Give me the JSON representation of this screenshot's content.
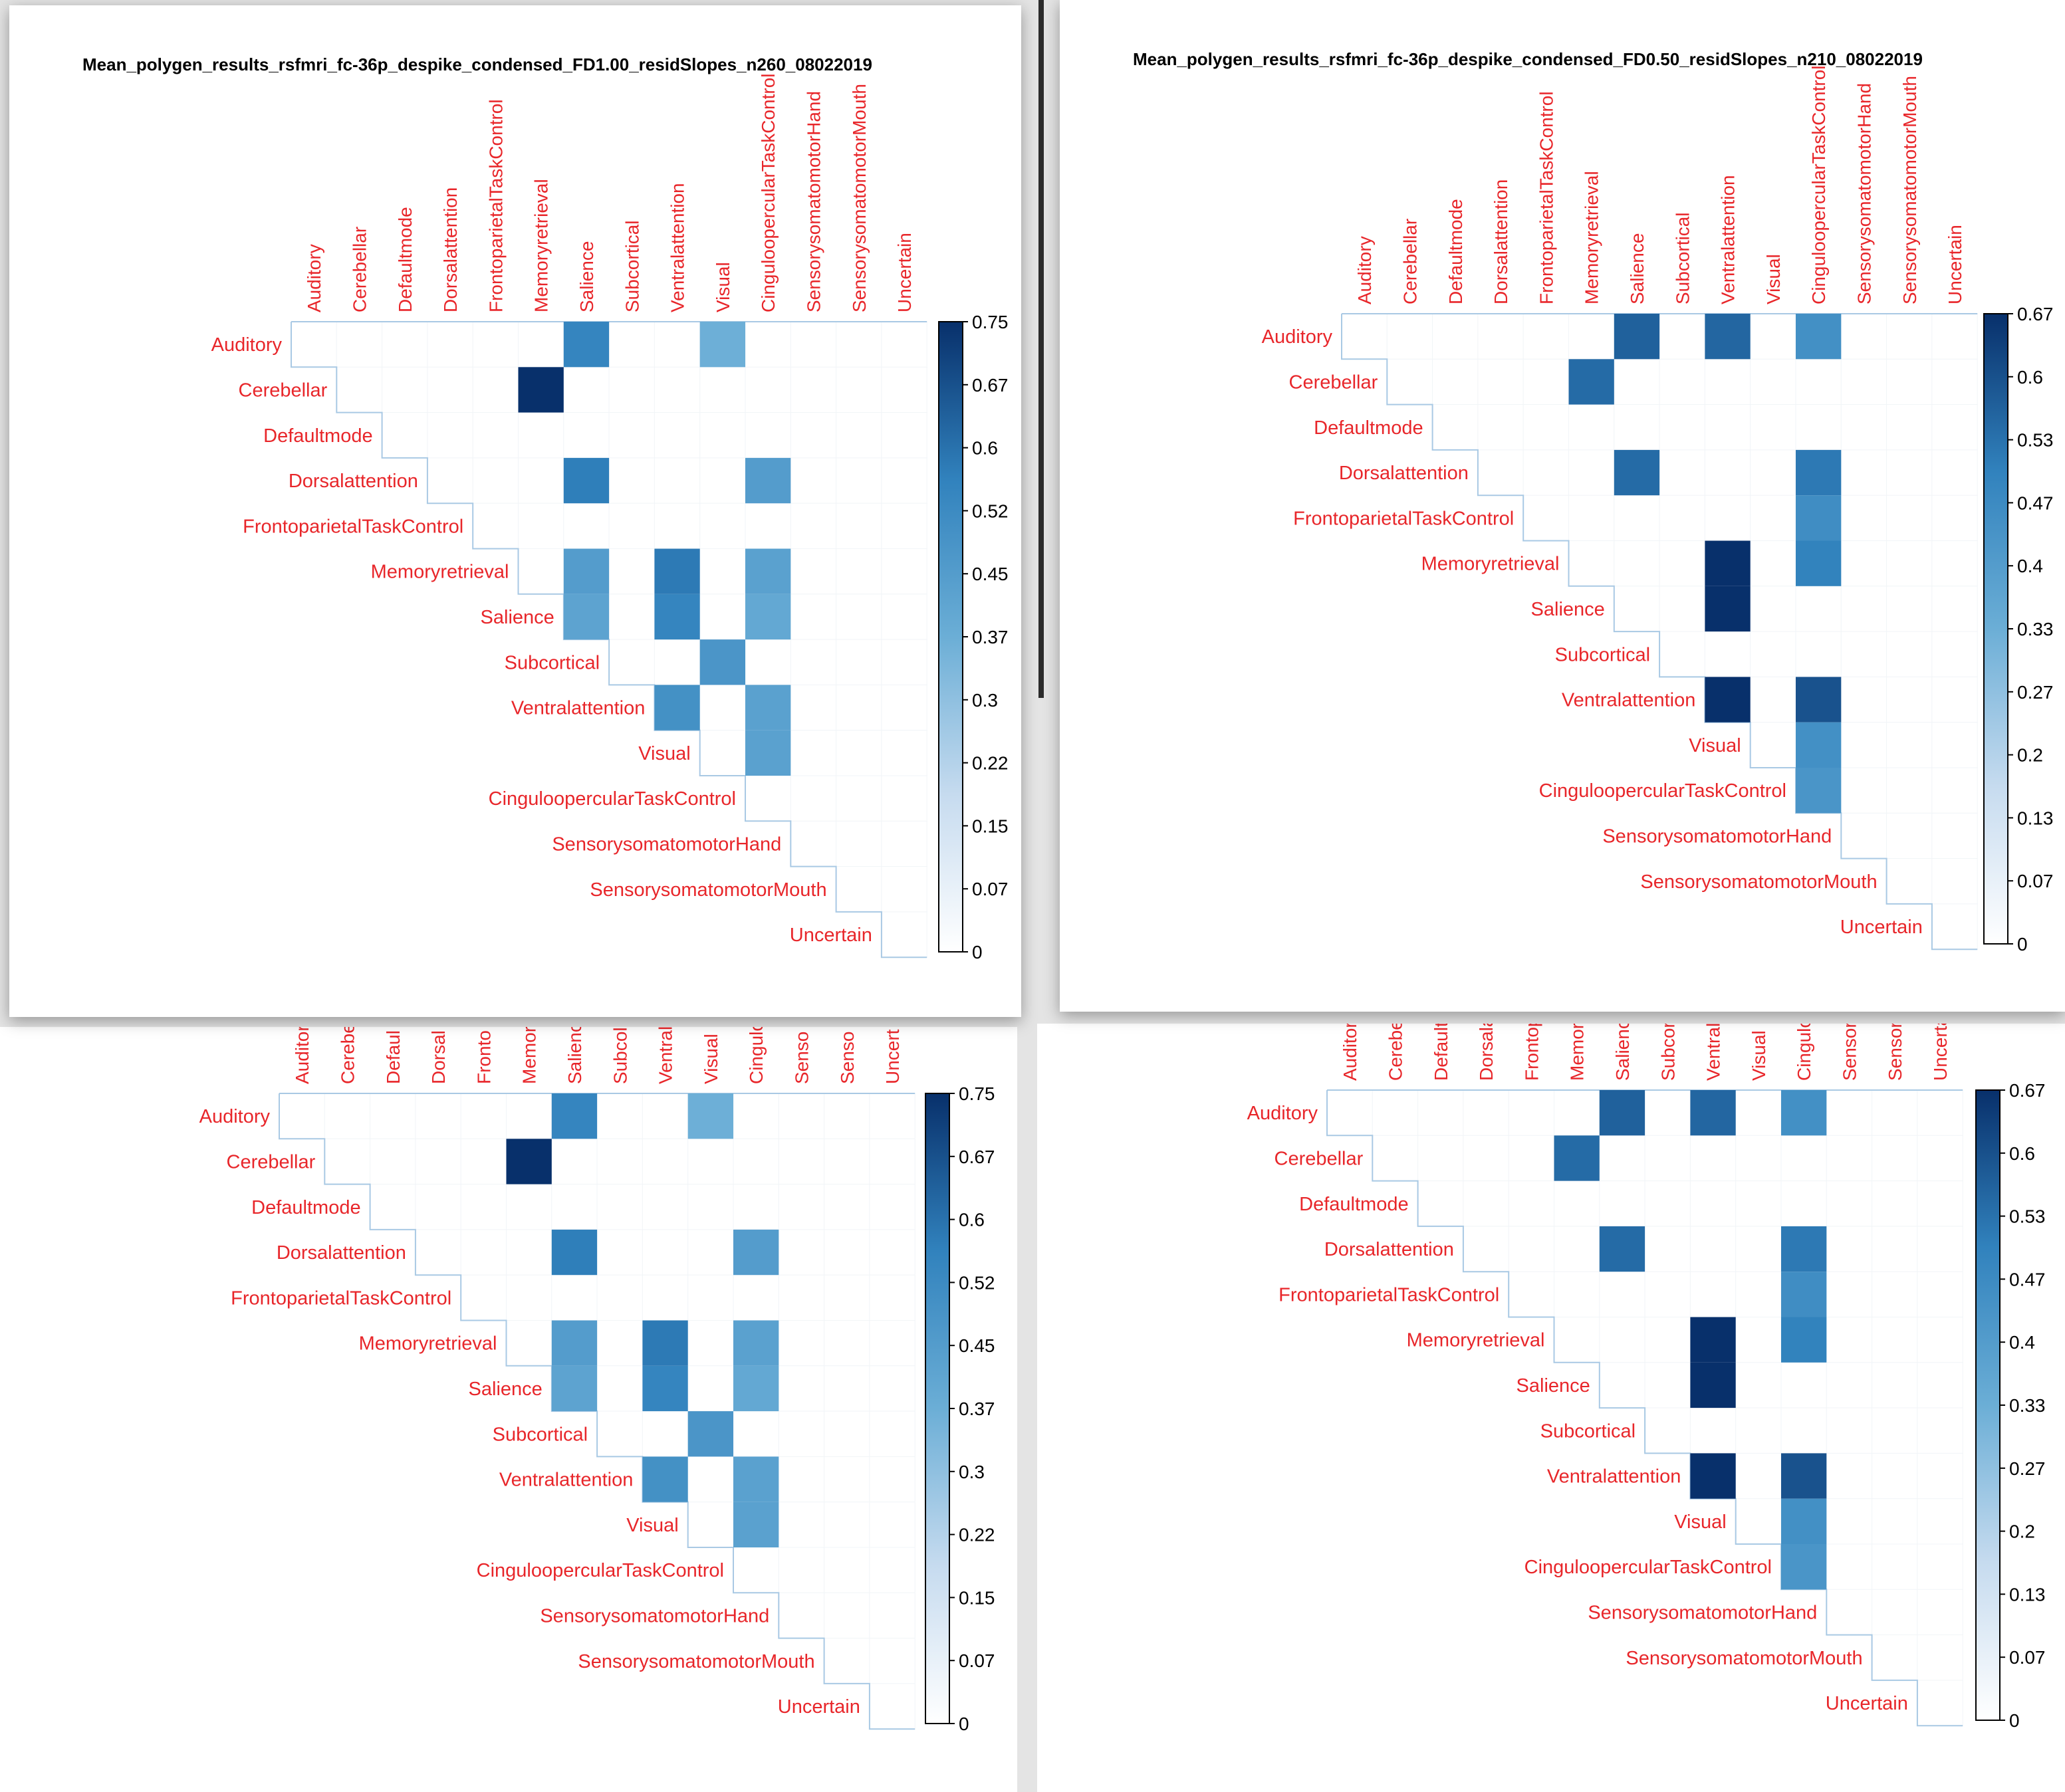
{
  "chart_data": [
    {
      "type": "heatmap",
      "title": "Mean_polygen_results_rsfmri_fc-36p_despike_condensed_FD1.00_residSlopes_n260_08022019",
      "columns": [
        "Auditory",
        "Cerebellar",
        "Defaultmode",
        "Dorsalattention",
        "FrontoparietalTaskControl",
        "Memoryretrieval",
        "Salience",
        "Subcortical",
        "Ventralattention",
        "Visual",
        "CinguloopercularTaskControl",
        "SensorysomatomotorHand",
        "SensorysomatomotorMouth",
        "Uncertain"
      ],
      "rows": [
        "Auditory",
        "Cerebellar",
        "Defaultmode",
        "Dorsalattention",
        "FrontoparietalTaskControl",
        "Memoryretrieval",
        "Salience",
        "Subcortical",
        "Ventralattention",
        "Visual",
        "CinguloopercularTaskControl",
        "SensorysomatomotorHand",
        "SensorysomatomotorMouth",
        "Uncertain"
      ],
      "cells": [
        {
          "row": "Auditory",
          "col": "Salience",
          "value": 0.55
        },
        {
          "row": "Auditory",
          "col": "Visual",
          "value": 0.37
        },
        {
          "row": "Cerebellar",
          "col": "Memoryretrieval",
          "value": 0.75
        },
        {
          "row": "Dorsalattention",
          "col": "Salience",
          "value": 0.57
        },
        {
          "row": "Dorsalattention",
          "col": "CinguloopercularTaskControl",
          "value": 0.45
        },
        {
          "row": "Memoryretrieval",
          "col": "Salience",
          "value": 0.45
        },
        {
          "row": "Memoryretrieval",
          "col": "Ventralattention",
          "value": 0.58
        },
        {
          "row": "Memoryretrieval",
          "col": "CinguloopercularTaskControl",
          "value": 0.43
        },
        {
          "row": "Salience",
          "col": "Salience",
          "value": 0.42
        },
        {
          "row": "Salience",
          "col": "Ventralattention",
          "value": 0.55
        },
        {
          "row": "Salience",
          "col": "CinguloopercularTaskControl",
          "value": 0.4
        },
        {
          "row": "Subcortical",
          "col": "Visual",
          "value": 0.48
        },
        {
          "row": "Ventralattention",
          "col": "Ventralattention",
          "value": 0.5
        },
        {
          "row": "Ventralattention",
          "col": "CinguloopercularTaskControl",
          "value": 0.43
        },
        {
          "row": "Visual",
          "col": "CinguloopercularTaskControl",
          "value": 0.43
        }
      ],
      "colorbar": {
        "ticks": [
          "0.75",
          "0.67",
          "0.6",
          "0.52",
          "0.45",
          "0.37",
          "0.3",
          "0.22",
          "0.15",
          "0.07",
          "0"
        ],
        "min": 0,
        "max": 0.75
      }
    },
    {
      "type": "heatmap",
      "title": "Mean_polygen_results_rsfmri_fc-36p_despike_condensed_FD0.50_residSlopes_n210_08022019",
      "columns": [
        "Auditory",
        "Cerebellar",
        "Defaultmode",
        "Dorsalattention",
        "FrontoparietalTaskControl",
        "Memoryretrieval",
        "Salience",
        "Subcortical",
        "Ventralattention",
        "Visual",
        "CinguloopercularTaskControl",
        "SensorysomatomotorHand",
        "SensorysomatomotorMouth",
        "Uncertain"
      ],
      "rows": [
        "Auditory",
        "Cerebellar",
        "Defaultmode",
        "Dorsalattention",
        "FrontoparietalTaskControl",
        "Memoryretrieval",
        "Salience",
        "Subcortical",
        "Ventralattention",
        "Visual",
        "CinguloopercularTaskControl",
        "SensorysomatomotorHand",
        "SensorysomatomotorMouth",
        "Uncertain"
      ],
      "cells": [
        {
          "row": "Auditory",
          "col": "Salience",
          "value": 0.57
        },
        {
          "row": "Auditory",
          "col": "Ventralattention",
          "value": 0.56
        },
        {
          "row": "Auditory",
          "col": "CinguloopercularTaskControl",
          "value": 0.45
        },
        {
          "row": "Cerebellar",
          "col": "Memoryretrieval",
          "value": 0.55
        },
        {
          "row": "Dorsalattention",
          "col": "Salience",
          "value": 0.55
        },
        {
          "row": "Dorsalattention",
          "col": "CinguloopercularTaskControl",
          "value": 0.52
        },
        {
          "row": "FrontoparietalTaskControl",
          "col": "CinguloopercularTaskControl",
          "value": 0.46
        },
        {
          "row": "Memoryretrieval",
          "col": "Ventralattention",
          "value": 0.67
        },
        {
          "row": "Memoryretrieval",
          "col": "CinguloopercularTaskControl",
          "value": 0.5
        },
        {
          "row": "Salience",
          "col": "Ventralattention",
          "value": 0.67
        },
        {
          "row": "Ventralattention",
          "col": "Ventralattention",
          "value": 0.67
        },
        {
          "row": "Ventralattention",
          "col": "CinguloopercularTaskControl",
          "value": 0.6
        },
        {
          "row": "Visual",
          "col": "CinguloopercularTaskControl",
          "value": 0.45
        },
        {
          "row": "CinguloopercularTaskControl",
          "col": "CinguloopercularTaskControl",
          "value": 0.43
        }
      ],
      "colorbar": {
        "ticks": [
          "0.67",
          "0.6",
          "0.53",
          "0.47",
          "0.4",
          "0.33",
          "0.27",
          "0.2",
          "0.13",
          "0.07",
          "0"
        ],
        "min": 0,
        "max": 0.67
      }
    },
    {
      "type": "heatmap",
      "title": "",
      "columns": [
        "Auditor",
        "Cerebe",
        "Defaul",
        "Dorsal",
        "Fronto",
        "Memor",
        "Salienc",
        "Subcol",
        "Ventral",
        "Visual",
        "Cingulo",
        "Senso",
        "Senso",
        "Uncert"
      ],
      "rows": [
        "Auditory",
        "Cerebellar",
        "Defaultmode",
        "Dorsalattention",
        "FrontoparietalTaskControl",
        "Memoryretrieval",
        "Salience",
        "Subcortical",
        "Ventralattention",
        "Visual",
        "CinguloopercularTaskControl",
        "SensorysomatomotorHand",
        "SensorysomatomotorMouth",
        "Uncertain"
      ],
      "cells": [
        {
          "row": "Auditory",
          "col": "Salienc",
          "value": 0.55
        },
        {
          "row": "Auditory",
          "col": "Visual",
          "value": 0.37
        },
        {
          "row": "Cerebellar",
          "col": "Memor",
          "value": 0.75
        },
        {
          "row": "Dorsalattention",
          "col": "Salienc",
          "value": 0.57
        },
        {
          "row": "Dorsalattention",
          "col": "Cingulo",
          "value": 0.45
        },
        {
          "row": "Memoryretrieval",
          "col": "Salienc",
          "value": 0.45
        },
        {
          "row": "Memoryretrieval",
          "col": "Ventral",
          "value": 0.58
        },
        {
          "row": "Memoryretrieval",
          "col": "Cingulo",
          "value": 0.43
        },
        {
          "row": "Salience",
          "col": "Salienc",
          "value": 0.42
        },
        {
          "row": "Salience",
          "col": "Ventral",
          "value": 0.55
        },
        {
          "row": "Salience",
          "col": "Cingulo",
          "value": 0.4
        },
        {
          "row": "Subcortical",
          "col": "Visual",
          "value": 0.48
        },
        {
          "row": "Ventralattention",
          "col": "Ventral",
          "value": 0.5
        },
        {
          "row": "Ventralattention",
          "col": "Cingulo",
          "value": 0.43
        },
        {
          "row": "Visual",
          "col": "Cingulo",
          "value": 0.43
        }
      ],
      "colorbar": {
        "ticks": [
          "0.75",
          "0.67",
          "0.6",
          "0.52",
          "0.45",
          "0.37",
          "0.3",
          "0.22",
          "0.15",
          "0.07",
          "0"
        ],
        "min": 0,
        "max": 0.75
      }
    },
    {
      "type": "heatmap",
      "title": "",
      "columns": [
        "Auditory",
        "Cerebe",
        "Defaultı",
        "Dorsala",
        "Frontop",
        "Memory",
        "Salienc",
        "Subcorl",
        "Ventrala",
        "Visual",
        "Cingulo",
        "Sensory",
        "Sensory",
        "Uncerta"
      ],
      "rows": [
        "Auditory",
        "Cerebellar",
        "Defaultmode",
        "Dorsalattention",
        "FrontoparietalTaskControl",
        "Memoryretrieval",
        "Salience",
        "Subcortical",
        "Ventralattention",
        "Visual",
        "CinguloopercularTaskControl",
        "SensorysomatomotorHand",
        "SensorysomatomotorMouth",
        "Uncertain"
      ],
      "cells": [
        {
          "row": "Auditory",
          "col": "Salienc",
          "value": 0.57
        },
        {
          "row": "Auditory",
          "col": "Ventrala",
          "value": 0.56
        },
        {
          "row": "Auditory",
          "col": "Cingulo",
          "value": 0.45
        },
        {
          "row": "Cerebellar",
          "col": "Memory",
          "value": 0.55
        },
        {
          "row": "Dorsalattention",
          "col": "Salienc",
          "value": 0.55
        },
        {
          "row": "Dorsalattention",
          "col": "Cingulo",
          "value": 0.52
        },
        {
          "row": "FrontoparietalTaskControl",
          "col": "Cingulo",
          "value": 0.46
        },
        {
          "row": "Memoryretrieval",
          "col": "Ventrala",
          "value": 0.67
        },
        {
          "row": "Memoryretrieval",
          "col": "Cingulo",
          "value": 0.5
        },
        {
          "row": "Salience",
          "col": "Ventrala",
          "value": 0.67
        },
        {
          "row": "Ventralattention",
          "col": "Ventrala",
          "value": 0.67
        },
        {
          "row": "Ventralattention",
          "col": "Cingulo",
          "value": 0.6
        },
        {
          "row": "Visual",
          "col": "Cingulo",
          "value": 0.45
        },
        {
          "row": "CinguloopercularTaskControl",
          "col": "Cingulo",
          "value": 0.43
        }
      ],
      "colorbar": {
        "ticks": [
          "0.67",
          "0.6",
          "0.53",
          "0.47",
          "0.4",
          "0.33",
          "0.27",
          "0.2",
          "0.13",
          "0.07",
          "0"
        ],
        "min": 0,
        "max": 0.67
      }
    }
  ]
}
